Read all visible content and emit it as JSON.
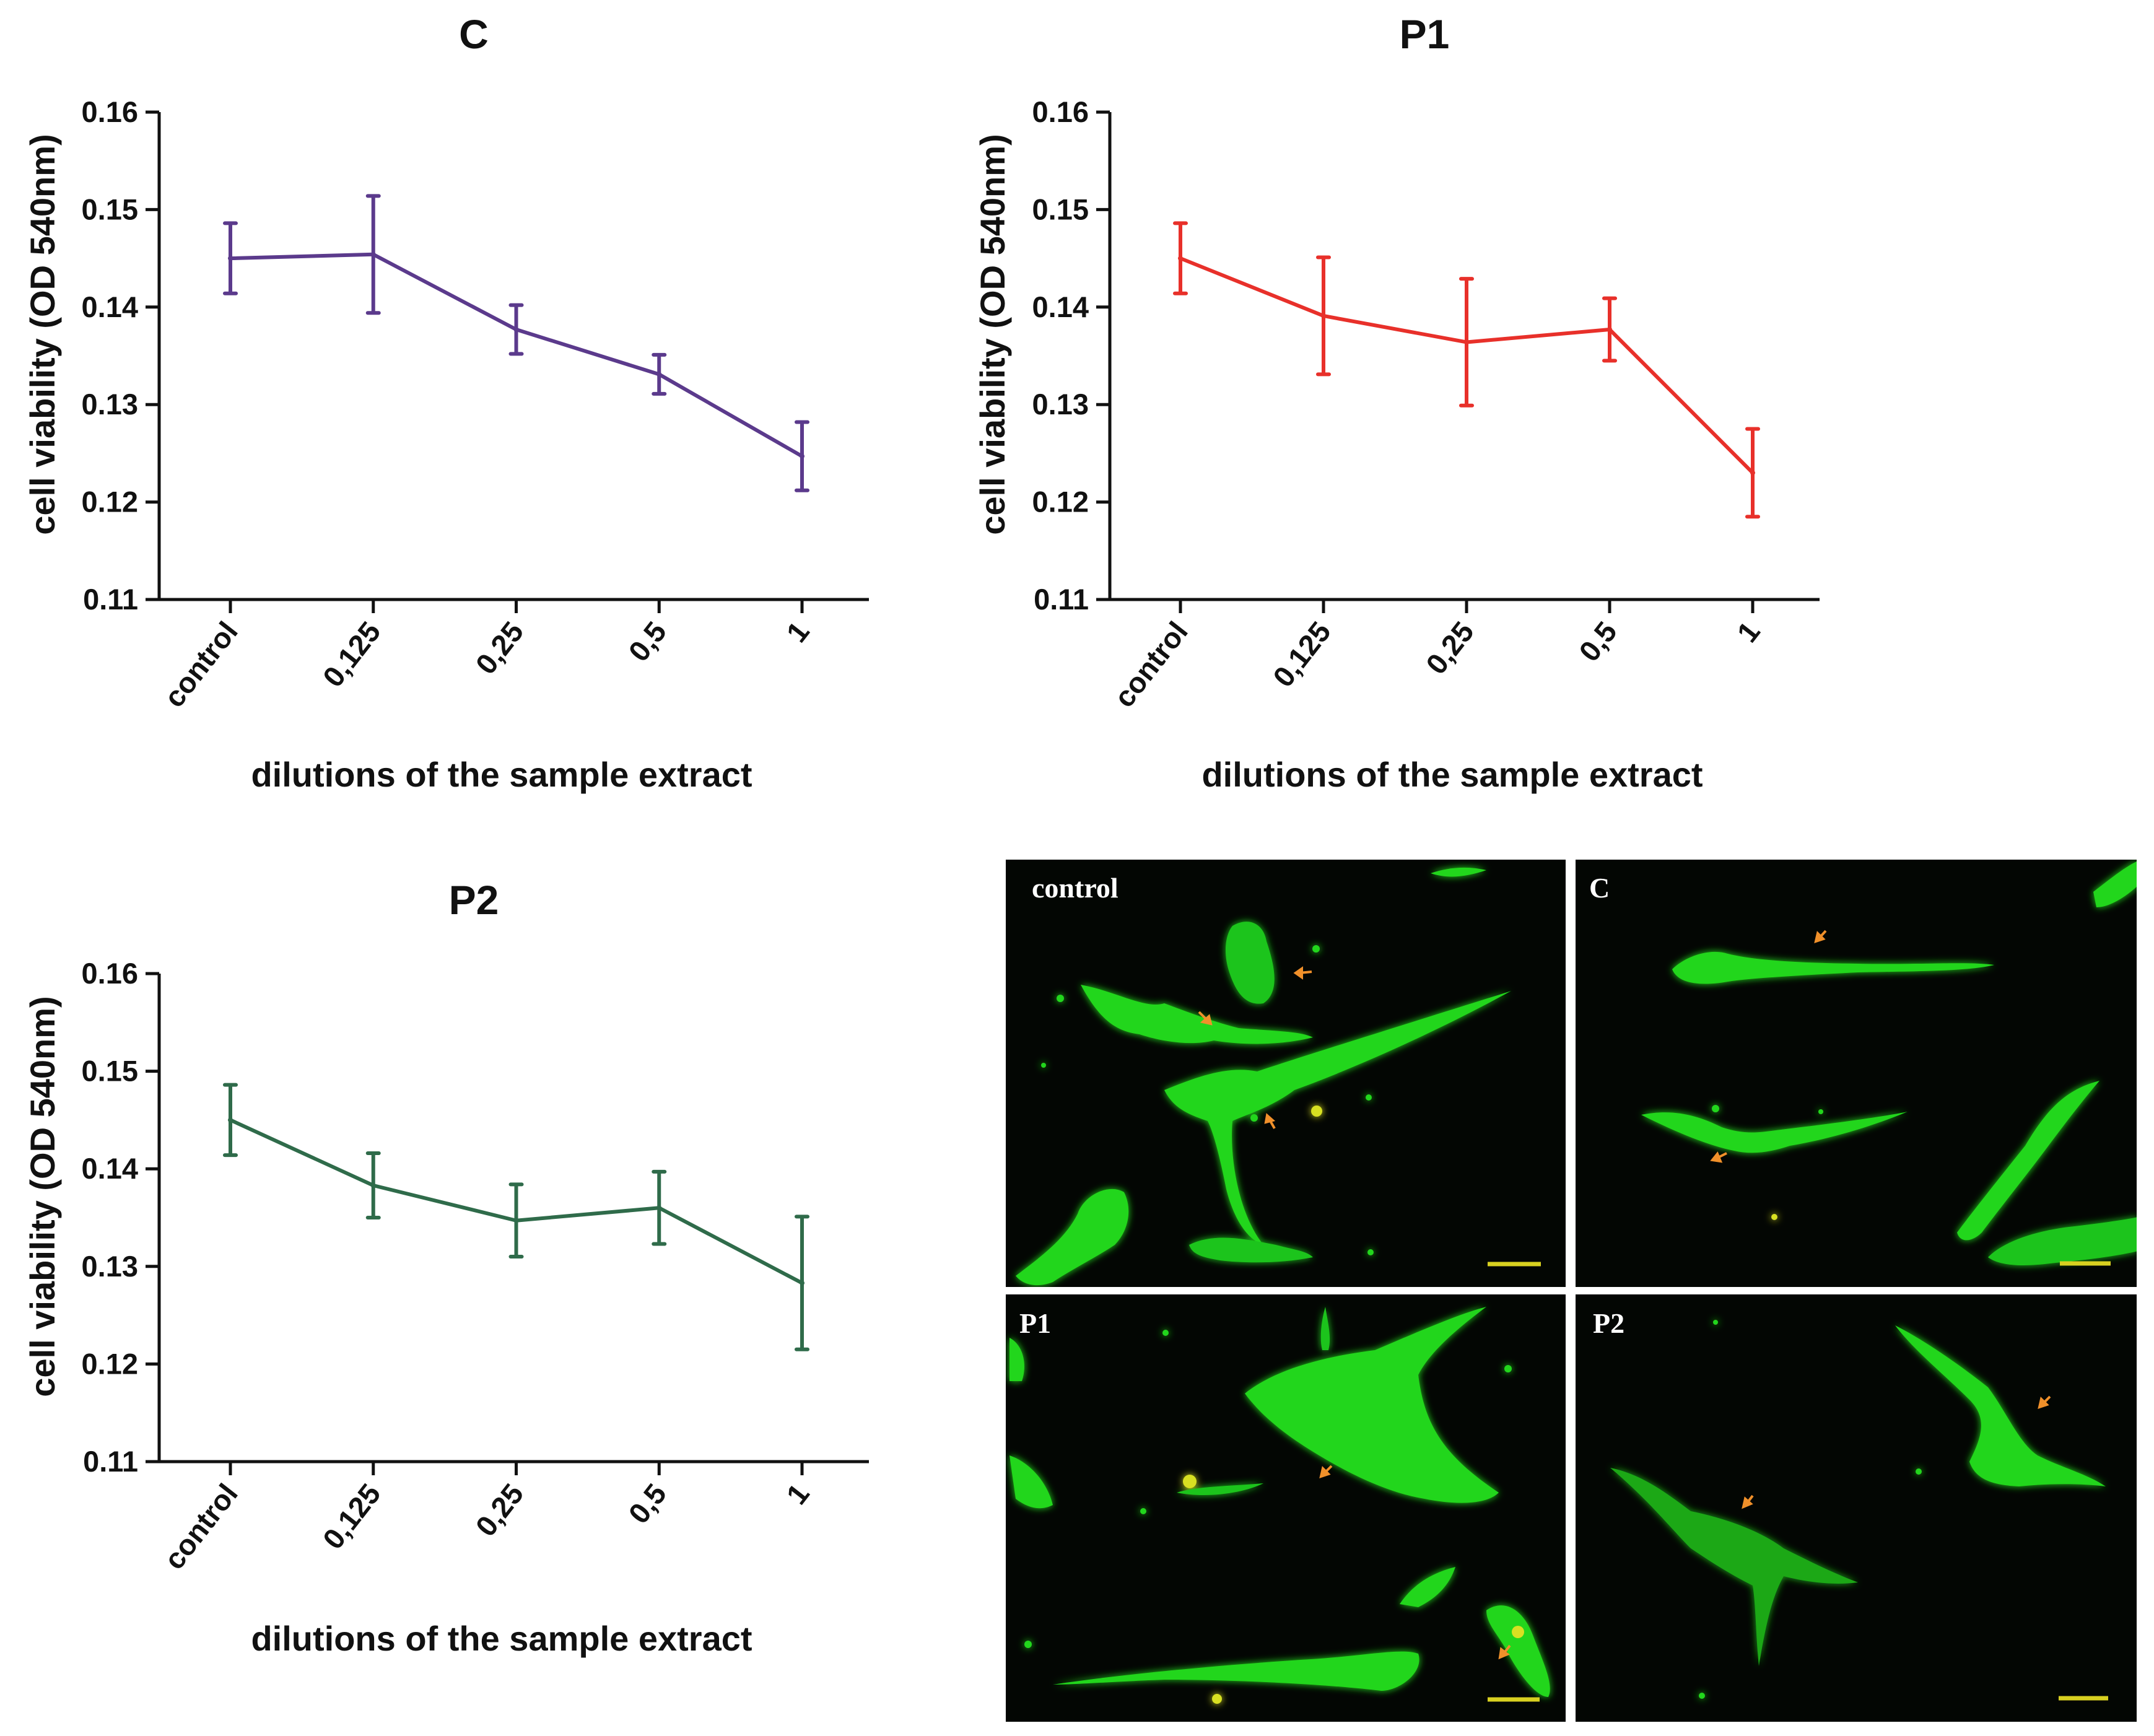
{
  "chart_data": [
    {
      "type": "line",
      "title": "C",
      "xlabel": "dilutions of the sample extract",
      "ylabel": "cell viability (OD 540nm)",
      "categories": [
        "control",
        "0,125",
        "0,25",
        "0,5",
        "1"
      ],
      "values": [
        0.145,
        0.1454,
        0.1377,
        0.1331,
        0.1247
      ],
      "errors": [
        0.0036,
        0.006,
        0.0025,
        0.002,
        0.0035
      ],
      "ylim": [
        0.11,
        0.16
      ],
      "yticks": [
        "0.11",
        "0.12",
        "0.13",
        "0.14",
        "0.15",
        "0.16"
      ],
      "color": "#5b3a8c"
    },
    {
      "type": "line",
      "title": "P1",
      "xlabel": "dilutions of the sample extract",
      "ylabel": "cell viability (OD 540nm)",
      "categories": [
        "control",
        "0,125",
        "0,25",
        "0,5",
        "1"
      ],
      "values": [
        0.145,
        0.1391,
        0.1364,
        0.1377,
        0.123
      ],
      "errors": [
        0.0036,
        0.006,
        0.0065,
        0.0032,
        0.0045
      ],
      "ylim": [
        0.11,
        0.16
      ],
      "yticks": [
        "0.11",
        "0.12",
        "0.13",
        "0.14",
        "0.15",
        "0.16"
      ],
      "color": "#e8302a"
    },
    {
      "type": "line",
      "title": "P2",
      "xlabel": "dilutions of the sample extract",
      "ylabel": "cell viability (OD 540nm)",
      "categories": [
        "control",
        "0,125",
        "0,25",
        "0,5",
        "1"
      ],
      "values": [
        0.145,
        0.1383,
        0.1347,
        0.136,
        0.1283
      ],
      "errors": [
        0.0036,
        0.0033,
        0.0037,
        0.0037,
        0.0068
      ],
      "ylim": [
        0.11,
        0.16
      ],
      "yticks": [
        "0.11",
        "0.12",
        "0.13",
        "0.14",
        "0.15",
        "0.16"
      ],
      "color": "#2f6b4a"
    }
  ],
  "micrographs": {
    "panels": [
      {
        "label": "control"
      },
      {
        "label": "C"
      },
      {
        "label": "P1"
      },
      {
        "label": "P2"
      }
    ],
    "colors": {
      "cell": "#22d61e",
      "arrow": "#f0902a",
      "scalebar": "#d8d020",
      "background": "#030603"
    }
  }
}
